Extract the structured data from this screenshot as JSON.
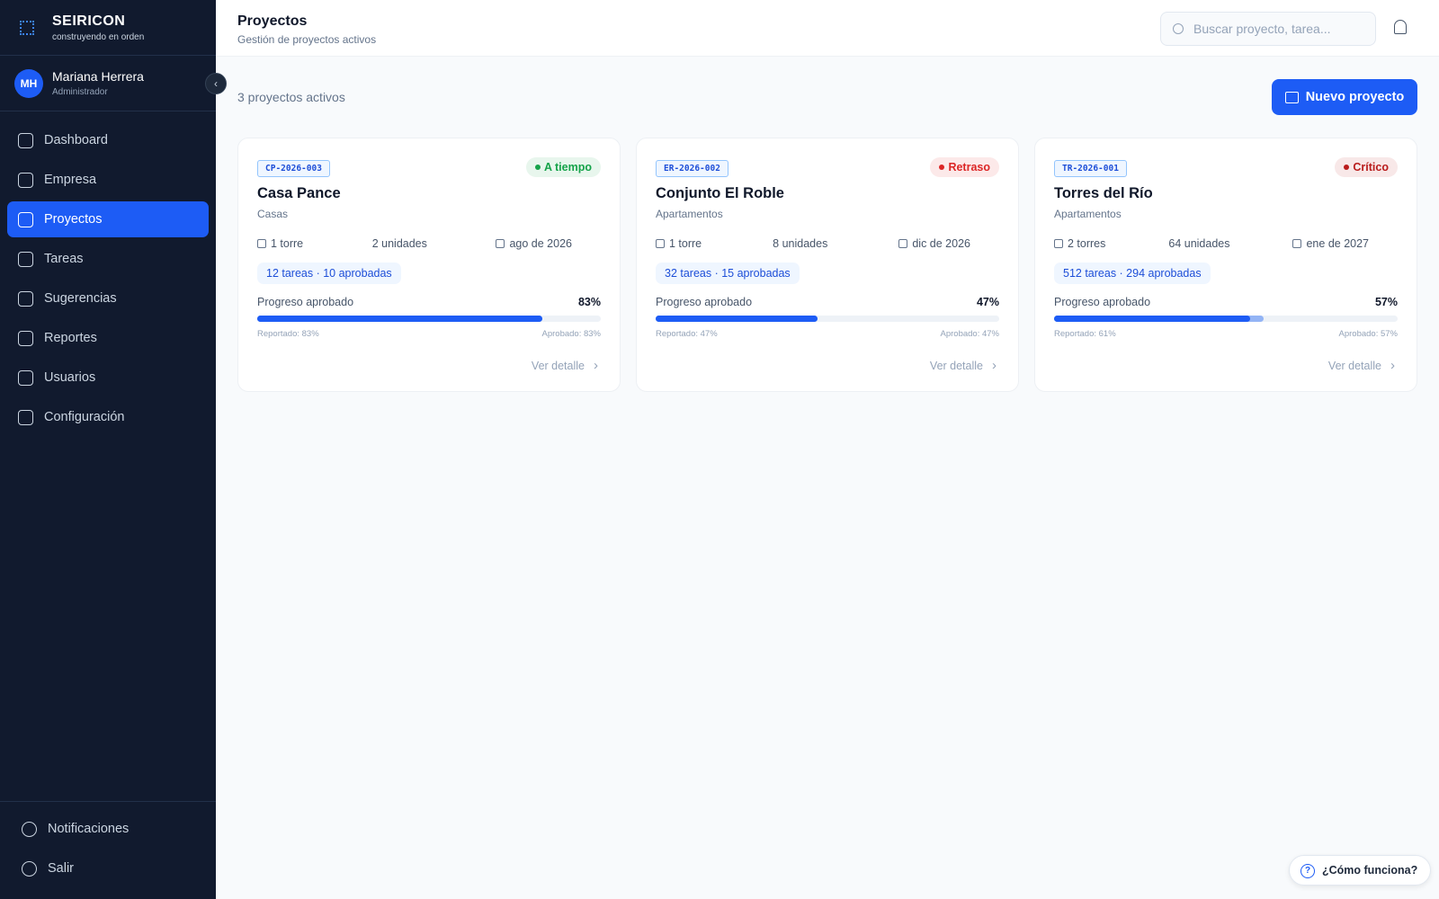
{
  "brand": {
    "name": "SEIRICON",
    "tagline": "construyendo en orden"
  },
  "user": {
    "initials": "MH",
    "name": "Mariana Herrera",
    "role": "Administrador"
  },
  "nav": [
    {
      "label": "Dashboard",
      "active": false
    },
    {
      "label": "Empresa",
      "active": false
    },
    {
      "label": "Proyectos",
      "active": true
    },
    {
      "label": "Tareas",
      "active": false
    },
    {
      "label": "Sugerencias",
      "active": false
    },
    {
      "label": "Reportes",
      "active": false
    },
    {
      "label": "Usuarios",
      "active": false
    },
    {
      "label": "Configuración",
      "active": false
    }
  ],
  "footer_nav": [
    "Notificaciones",
    "Salir"
  ],
  "header": {
    "title": "Proyectos",
    "subtitle": "Gestión de proyectos activos",
    "search_placeholder": "Buscar proyecto, tarea..."
  },
  "summary": "3 proyectos activos",
  "new_button": "Nuevo proyecto",
  "projects": [
    {
      "code": "CP-2026-003",
      "status": "A tiempo",
      "status_color": "#16a34a",
      "name": "Casa Pance",
      "type": "Casas",
      "towers": "1 torre",
      "units": "2 unidades",
      "date": "ago de 2026",
      "tasks": "12 tareas · 10 aprobadas",
      "progress_label": "Progreso aprobado",
      "progress": {
        "value": 83,
        "label": "83%"
      },
      "reported": {
        "value": 83,
        "label": "Reportado: 83%"
      },
      "approved": "Aprobado: 83%",
      "link": "Ver detalle"
    },
    {
      "code": "ER-2026-002",
      "status": "Retraso",
      "status_color": "#dc2626",
      "name": "Conjunto El Roble",
      "type": "Apartamentos",
      "towers": "1 torre",
      "units": "8 unidades",
      "date": "dic de 2026",
      "tasks": "32 tareas · 15 aprobadas",
      "progress_label": "Progreso aprobado",
      "progress": {
        "value": 47,
        "label": "47%"
      },
      "reported": {
        "value": 47,
        "label": "Reportado: 47%"
      },
      "approved": "Aprobado: 47%",
      "link": "Ver detalle"
    },
    {
      "code": "TR-2026-001",
      "status": "Crítico",
      "status_color": "#b91c1c",
      "name": "Torres del Río",
      "type": "Apartamentos",
      "towers": "2 torres",
      "units": "64 unidades",
      "date": "ene de 2027",
      "tasks": "512 tareas · 294 aprobadas",
      "progress_label": "Progreso aprobado",
      "progress": {
        "value": 57,
        "label": "57%"
      },
      "reported": {
        "value": 61,
        "label": "Reportado: 61%"
      },
      "approved": "Aprobado: 57%",
      "link": "Ver detalle"
    }
  ],
  "help": "¿Cómo funciona?"
}
